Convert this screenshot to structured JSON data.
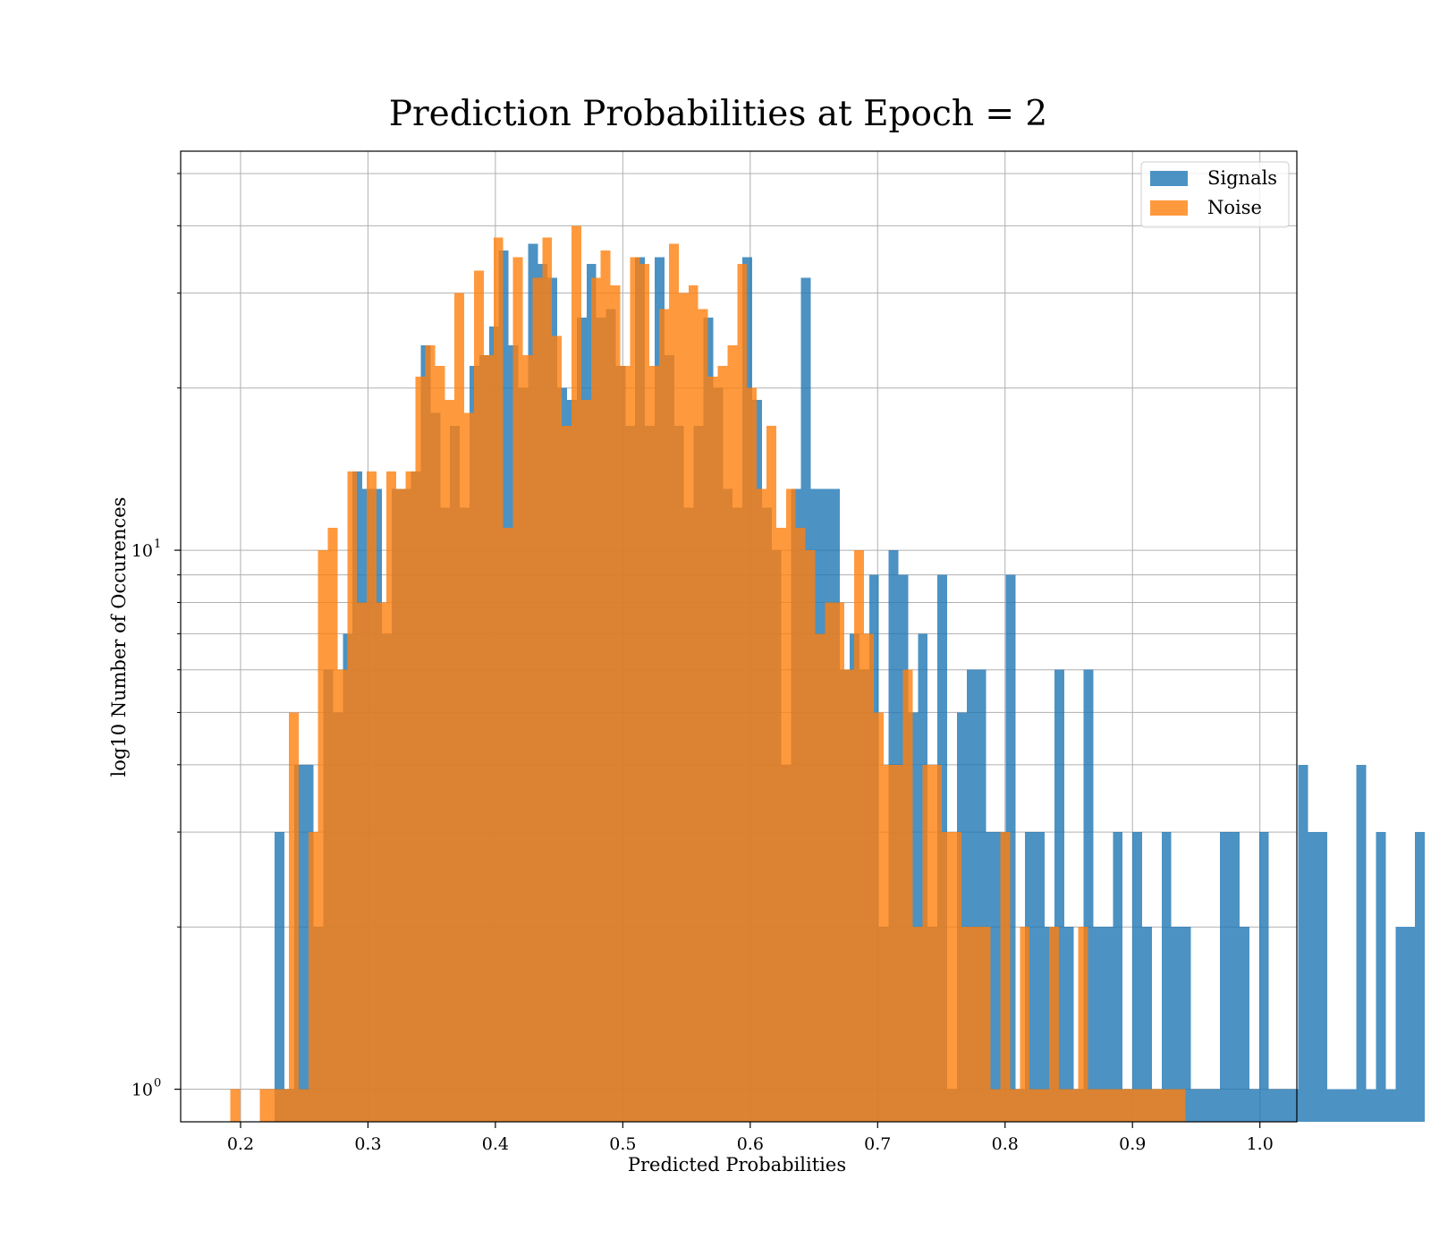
{
  "chart_data": {
    "type": "histogram",
    "title": "Prediction Probabilities at Epoch = 2",
    "xlabel": "Predicted Probabilities",
    "ylabel": "log10 Number of Occurences",
    "xlim": [
      0.153,
      1.029
    ],
    "ylim": [
      0.87,
      55
    ],
    "yscale": "log",
    "grid": true,
    "legend_position": "upper right",
    "x_ticks": [
      0.2,
      0.3,
      0.4,
      0.5,
      0.6,
      0.7,
      0.8,
      0.9,
      1.0
    ],
    "x_tick_labels": [
      "0.2",
      "0.3",
      "0.4",
      "0.5",
      "0.6",
      "0.7",
      "0.8",
      "0.9",
      "1.0"
    ],
    "y_major_ticks": [
      {
        "value": 1,
        "base": "10",
        "exp": "0"
      },
      {
        "value": 10,
        "base": "10",
        "exp": "1"
      }
    ],
    "y_minor_ticks": [
      2,
      3,
      4,
      5,
      6,
      7,
      8,
      9,
      20,
      30,
      40,
      50
    ],
    "series": [
      {
        "name": "Signals",
        "color": "#1f77b4",
        "opacity": 0.8,
        "bin_start": 0.2267,
        "bin_width": 0.00765,
        "counts": [
          3,
          1,
          4,
          4,
          2,
          6,
          5,
          7,
          14,
          13,
          13,
          7,
          13,
          13,
          14,
          24,
          18,
          12,
          17,
          12,
          22,
          23,
          26,
          36,
          24,
          20,
          37,
          34,
          32,
          20,
          19,
          27,
          34,
          27,
          28,
          22,
          17,
          35,
          17,
          35,
          23,
          17,
          12,
          17,
          27,
          20,
          13,
          12,
          35,
          19,
          12,
          10,
          4,
          13,
          32,
          13,
          13,
          13,
          6,
          7,
          6,
          9,
          2,
          10,
          9,
          5,
          7,
          2,
          9,
          1,
          5,
          6,
          6,
          3,
          3,
          9,
          1,
          3,
          3,
          2,
          6,
          2,
          1,
          6,
          2,
          2,
          3,
          1,
          3,
          2,
          1,
          3,
          2,
          2,
          1,
          1,
          1,
          3,
          3,
          2,
          1,
          3,
          1,
          1,
          1,
          4,
          3,
          3,
          1,
          1,
          1,
          4,
          1,
          3,
          1,
          2,
          2,
          3
        ]
      },
      {
        "name": "Noise",
        "color": "#ff7f0e",
        "opacity": 0.8,
        "bin_start": 0.192,
        "bin_width": 0.00765,
        "counts": [
          1,
          0,
          0,
          1,
          1,
          1,
          5,
          1,
          3,
          10,
          11,
          6,
          14,
          8,
          14,
          8,
          14,
          13,
          14,
          21,
          24,
          22,
          19,
          30,
          18,
          33,
          23,
          38,
          11,
          35,
          23,
          32,
          38,
          25,
          17,
          40,
          19,
          32,
          36,
          31,
          22,
          35,
          34,
          22,
          28,
          37,
          30,
          31,
          28,
          21,
          22,
          24,
          34,
          20,
          13,
          17,
          11,
          13,
          11,
          10,
          7,
          8,
          8,
          6,
          10,
          7,
          5,
          4,
          4,
          6,
          2,
          4,
          4,
          3,
          3,
          2,
          2,
          2,
          1,
          3,
          1,
          2,
          1,
          1,
          2,
          1,
          1,
          2,
          1,
          1,
          1,
          1,
          1,
          1,
          1,
          1,
          1,
          1
        ]
      }
    ]
  }
}
